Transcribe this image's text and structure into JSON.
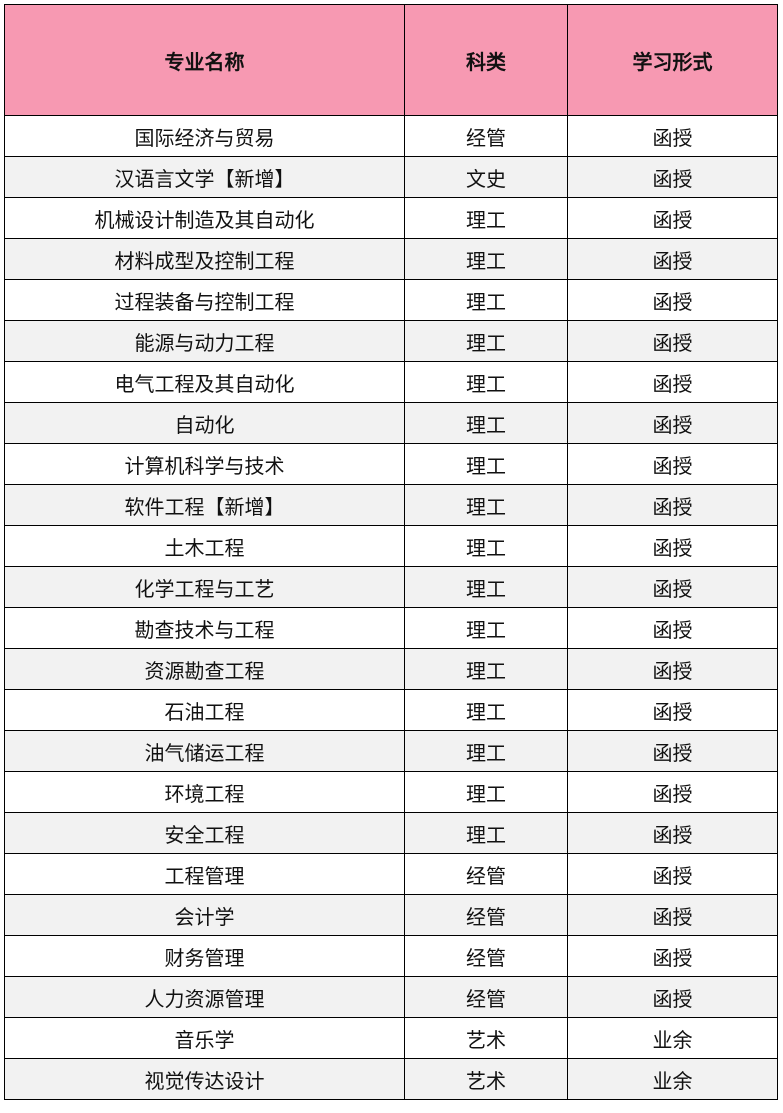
{
  "header": {
    "name": "专业名称",
    "category": "科类",
    "mode": "学习形式"
  },
  "colors": {
    "header_bg": "#f799b2",
    "alt_row_bg": "#f2f2f2"
  },
  "rows": [
    {
      "name": "国际经济与贸易",
      "category": "经管",
      "mode": "函授"
    },
    {
      "name": "汉语言文学【新增】",
      "category": "文史",
      "mode": "函授"
    },
    {
      "name": "机械设计制造及其自动化",
      "category": "理工",
      "mode": "函授"
    },
    {
      "name": "材料成型及控制工程",
      "category": "理工",
      "mode": "函授"
    },
    {
      "name": "过程装备与控制工程",
      "category": "理工",
      "mode": "函授"
    },
    {
      "name": "能源与动力工程",
      "category": "理工",
      "mode": "函授"
    },
    {
      "name": "电气工程及其自动化",
      "category": "理工",
      "mode": "函授"
    },
    {
      "name": "自动化",
      "category": "理工",
      "mode": "函授"
    },
    {
      "name": "计算机科学与技术",
      "category": "理工",
      "mode": "函授"
    },
    {
      "name": "软件工程【新增】",
      "category": "理工",
      "mode": "函授"
    },
    {
      "name": "土木工程",
      "category": "理工",
      "mode": "函授"
    },
    {
      "name": "化学工程与工艺",
      "category": "理工",
      "mode": "函授"
    },
    {
      "name": "勘查技术与工程",
      "category": "理工",
      "mode": "函授"
    },
    {
      "name": "资源勘查工程",
      "category": "理工",
      "mode": "函授"
    },
    {
      "name": "石油工程",
      "category": "理工",
      "mode": "函授"
    },
    {
      "name": "油气储运工程",
      "category": "理工",
      "mode": "函授"
    },
    {
      "name": "环境工程",
      "category": "理工",
      "mode": "函授"
    },
    {
      "name": "安全工程",
      "category": "理工",
      "mode": "函授"
    },
    {
      "name": "工程管理",
      "category": "经管",
      "mode": "函授"
    },
    {
      "name": "会计学",
      "category": "经管",
      "mode": "函授"
    },
    {
      "name": "财务管理",
      "category": "经管",
      "mode": "函授"
    },
    {
      "name": "人力资源管理",
      "category": "经管",
      "mode": "函授"
    },
    {
      "name": "音乐学",
      "category": "艺术",
      "mode": "业余"
    },
    {
      "name": "视觉传达设计",
      "category": "艺术",
      "mode": "业余"
    }
  ]
}
